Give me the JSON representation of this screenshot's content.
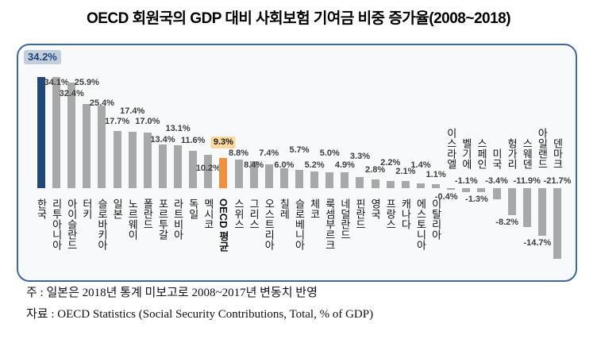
{
  "title": "OECD 회원국의 GDP 대비 사회보험 기여금 비중 증가율(2008~2018)",
  "notes": [
    "주 : 일본은 2018년 통계 미보고로 2008~2017년 변동치 반영",
    "자료 : OECD Statistics (Social Security Contributions, Total, % of GDP)"
  ],
  "colors": {
    "bar": "#a8a8a8",
    "korea_bar": "#1f4879",
    "oecd_bar": "#ef9143",
    "panel_border": "#3f6898",
    "korea_badge_bg": "#c3cedd",
    "korea_badge_text": "#1e4579",
    "oecd_badge_bg": "#fbd7a0"
  },
  "chart_data": {
    "type": "bar",
    "title": "OECD 회원국의 GDP 대비 사회보험 기여금 비중 증가율(2008~2018)",
    "unit": "%",
    "ylim": [
      -25,
      40
    ],
    "grid": false,
    "legend": "none",
    "categories": [
      "한국",
      "리투아니아",
      "아이슬란드",
      "터키",
      "슬로바키아",
      "일본",
      "노르웨이",
      "폴란드",
      "포르투갈",
      "라트비아",
      "독일",
      "멕시코",
      "OECD 평균",
      "스위스",
      "그리스",
      "오스트리아",
      "칠레",
      "슬로베니아",
      "체코",
      "룩셈부르크",
      "네덜란드",
      "핀란드",
      "영국",
      "프랑스",
      "캐나다",
      "에스토니아",
      "이탈리아",
      "이스라엘",
      "벨기에",
      "스페인",
      "미국",
      "헝가리",
      "스웨덴",
      "아일랜드",
      "덴마크"
    ],
    "values": [
      34.2,
      34.1,
      32.4,
      25.9,
      25.4,
      17.7,
      17.4,
      17.0,
      13.4,
      13.1,
      11.6,
      10.2,
      9.3,
      8.8,
      8.4,
      7.4,
      6.0,
      5.7,
      5.2,
      5.0,
      4.9,
      3.3,
      2.8,
      2.2,
      2.1,
      1.4,
      1.1,
      -0.4,
      -1.1,
      -1.3,
      -3.4,
      -8.2,
      -11.9,
      -14.7,
      -21.7
    ],
    "points": [
      {
        "name": "한국",
        "value": 34.2,
        "label": "34.2%",
        "color": "korea"
      },
      {
        "name": "리투아니아",
        "value": 34.1,
        "label": "34.1%",
        "color": "gray"
      },
      {
        "name": "아이슬란드",
        "value": 32.4,
        "label": "32.4%",
        "color": "gray"
      },
      {
        "name": "터키",
        "value": 25.9,
        "label": "25.9%",
        "color": "gray"
      },
      {
        "name": "슬로바키아",
        "value": 25.4,
        "label": "25.4%",
        "color": "gray"
      },
      {
        "name": "일본",
        "value": 17.7,
        "label": "17.7%",
        "color": "gray"
      },
      {
        "name": "노르웨이",
        "value": 17.4,
        "label": "17.4%",
        "color": "gray"
      },
      {
        "name": "폴란드",
        "value": 17.0,
        "label": "17.0%",
        "color": "gray"
      },
      {
        "name": "포르투갈",
        "value": 13.4,
        "label": "13.4%",
        "color": "gray"
      },
      {
        "name": "라트비아",
        "value": 13.1,
        "label": "13.1%",
        "color": "gray"
      },
      {
        "name": "독일",
        "value": 11.6,
        "label": "11.6%",
        "color": "gray"
      },
      {
        "name": "멕시코",
        "value": 10.2,
        "label": "10.2%",
        "color": "gray"
      },
      {
        "name": "OECD 평균",
        "value": 9.3,
        "label": "9.3%",
        "color": "oecd",
        "bold": true
      },
      {
        "name": "스위스",
        "value": 8.8,
        "label": "8.8%",
        "color": "gray"
      },
      {
        "name": "그리스",
        "value": 8.4,
        "label": "8.4%",
        "color": "gray"
      },
      {
        "name": "오스트리아",
        "value": 7.4,
        "label": "7.4%",
        "color": "gray"
      },
      {
        "name": "칠레",
        "value": 6.0,
        "label": "6.0%",
        "color": "gray"
      },
      {
        "name": "슬로베니아",
        "value": 5.7,
        "label": "5.7%",
        "color": "gray"
      },
      {
        "name": "체코",
        "value": 5.2,
        "label": "5.2%",
        "color": "gray"
      },
      {
        "name": "룩셈부르크",
        "value": 5.0,
        "label": "5.0%",
        "color": "gray"
      },
      {
        "name": "네덜란드",
        "value": 4.9,
        "label": "4.9%",
        "color": "gray"
      },
      {
        "name": "핀란드",
        "value": 3.3,
        "label": "3.3%",
        "color": "gray"
      },
      {
        "name": "영국",
        "value": 2.8,
        "label": "2.8%",
        "color": "gray"
      },
      {
        "name": "프랑스",
        "value": 2.2,
        "label": "2.2%",
        "color": "gray"
      },
      {
        "name": "캐나다",
        "value": 2.1,
        "label": "2.1%",
        "color": "gray"
      },
      {
        "name": "에스토니아",
        "value": 1.4,
        "label": "1.4%",
        "color": "gray"
      },
      {
        "name": "이탈리아",
        "value": 1.1,
        "label": "1.1%",
        "color": "gray"
      },
      {
        "name": "이스라엘",
        "value": -0.4,
        "label": "-0.4%",
        "color": "gray"
      },
      {
        "name": "벨기에",
        "value": -1.1,
        "label": "-1.1%",
        "color": "gray"
      },
      {
        "name": "스페인",
        "value": -1.3,
        "label": "-1.3%",
        "color": "gray"
      },
      {
        "name": "미국",
        "value": -3.4,
        "label": "-3.4%",
        "color": "gray"
      },
      {
        "name": "헝가리",
        "value": -8.2,
        "label": "-8.2%",
        "color": "gray"
      },
      {
        "name": "스웨덴",
        "value": -11.9,
        "label": "-11.9%",
        "color": "gray"
      },
      {
        "name": "아일랜드",
        "value": -14.7,
        "label": "-14.7%",
        "color": "gray"
      },
      {
        "name": "덴마크",
        "value": -21.7,
        "label": "-21.7%",
        "color": "gray"
      }
    ]
  }
}
